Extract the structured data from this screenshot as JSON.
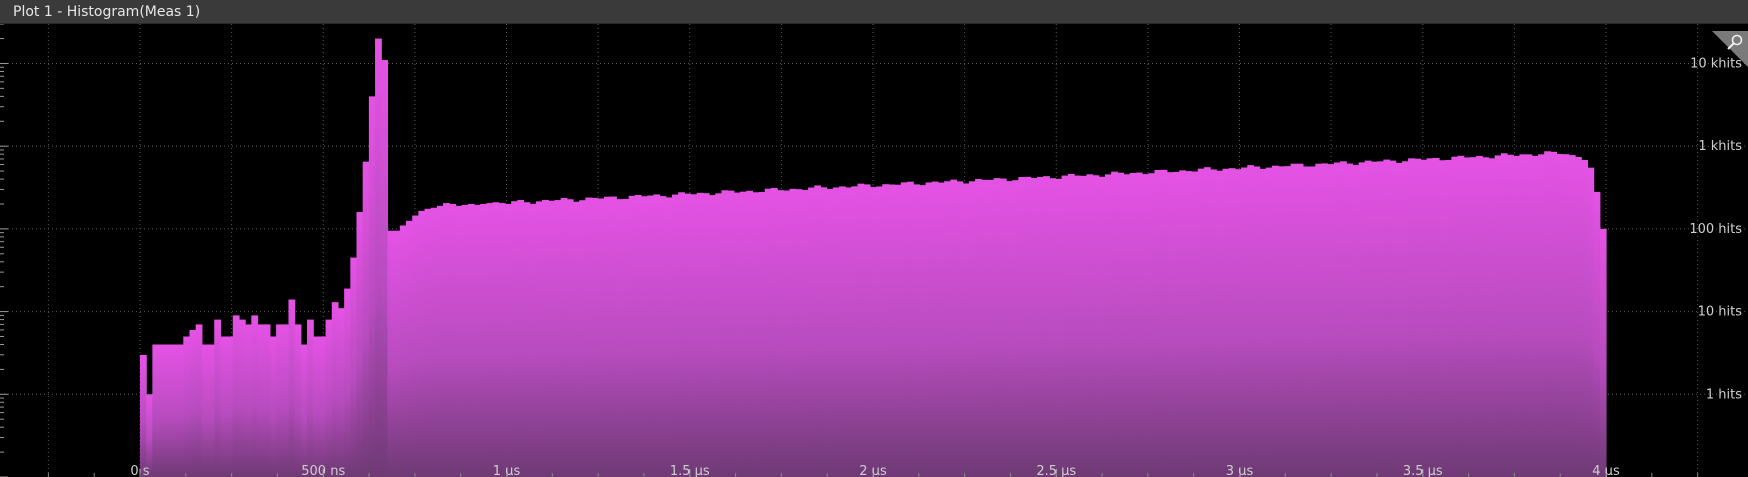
{
  "window": {
    "title": "Plot 1 - Histogram(Meas 1)"
  },
  "icons": {
    "zoom": "magnifier-icon"
  },
  "colors": {
    "bar": "#e04ae0",
    "bar_bottom": "#7a3f80",
    "grid": "#5a5a5a",
    "background": "#000000"
  },
  "chart_data": {
    "type": "bar",
    "title": "",
    "xlabel": "",
    "ylabel": "",
    "y_scale": "log",
    "xlim": [
      0,
      4000
    ],
    "x_unit": "ns",
    "ylim": [
      0.1,
      30000
    ],
    "grid": true,
    "x_ticks": [
      {
        "value": 0,
        "label": "0 s"
      },
      {
        "value": 500,
        "label": "500 ns"
      },
      {
        "value": 1000,
        "label": "1 µs"
      },
      {
        "value": 1500,
        "label": "1.5 µs"
      },
      {
        "value": 2000,
        "label": "2 µs"
      },
      {
        "value": 2500,
        "label": "2.5 µs"
      },
      {
        "value": 3000,
        "label": "3 µs"
      },
      {
        "value": 3500,
        "label": "3.5 µs"
      },
      {
        "value": 4000,
        "label": "4 µs"
      }
    ],
    "y_ticks": [
      {
        "value": 10000,
        "label": "10 khits"
      },
      {
        "value": 1000,
        "label": "1 khits"
      },
      {
        "value": 100,
        "label": "100 hits"
      },
      {
        "value": 10,
        "label": "10 hits"
      },
      {
        "value": 1,
        "label": "1 hits"
      }
    ],
    "bin_width": 16.67,
    "bins_start": [
      3,
      1,
      4,
      4,
      4,
      4,
      4,
      5,
      6,
      7,
      4,
      4,
      8,
      5,
      5,
      9,
      8,
      7,
      9,
      7,
      7,
      5,
      7,
      7,
      14,
      7,
      4,
      8,
      5,
      5,
      8,
      13,
      11,
      19,
      45,
      160,
      650,
      4000,
      20000,
      11000,
      95,
      95,
      110,
      125,
      145,
      165,
      175,
      180,
      190,
      205,
      200,
      190,
      195,
      200,
      195,
      200,
      205,
      210,
      205,
      200
    ],
    "bins_rest_range": [
      210,
      830
    ],
    "bins_rest_count": 170,
    "bins_tail": [
      800,
      780,
      740,
      680,
      550,
      280,
      100
    ]
  }
}
